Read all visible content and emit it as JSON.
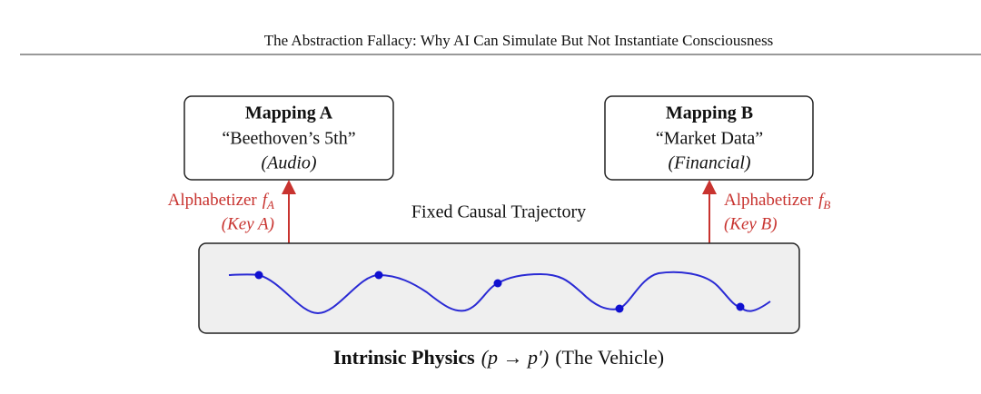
{
  "header": {
    "title": "The Abstraction Fallacy: Why AI Can Simulate But Not Instantiate Consciousness"
  },
  "mapping_a": {
    "title": "Mapping A",
    "content": "“Beethoven’s 5th”",
    "kind": "(Audio)"
  },
  "mapping_b": {
    "title": "Mapping B",
    "content": "“Market Data”",
    "kind": "(Financial)"
  },
  "alphabetizer_a": {
    "label": "Alphabetizer",
    "symbol": "f",
    "subscript": "A",
    "key": "(Key A)"
  },
  "alphabetizer_b": {
    "label": "Alphabetizer",
    "symbol": "f",
    "subscript": "B",
    "key": "(Key B)"
  },
  "trajectory": {
    "label": "Fixed Causal Trajectory"
  },
  "caption": {
    "title": "Intrinsic Physics",
    "formula": "(p → p′)",
    "note": "(The Vehicle)"
  }
}
